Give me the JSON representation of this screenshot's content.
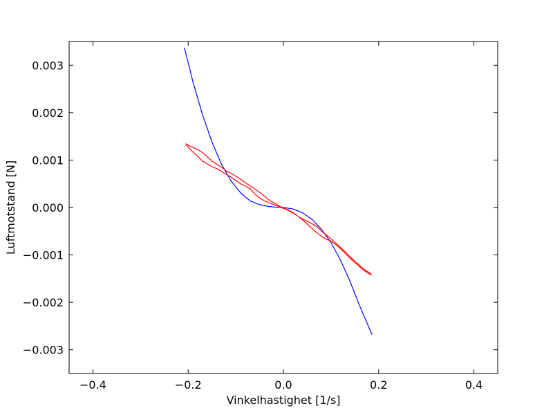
{
  "chart_data": {
    "type": "line",
    "title": "",
    "xlabel": "Vinkelhastighet [1/s]",
    "ylabel": "Luftmotstand [N]",
    "xlim": [
      -0.45,
      0.45
    ],
    "ylim": [
      -0.0035,
      0.0035
    ],
    "xticks": [
      -0.4,
      -0.2,
      0.0,
      0.2,
      0.4
    ],
    "yticks": [
      0.003,
      0.002,
      0.001,
      0.0,
      -0.001,
      -0.002,
      -0.003
    ],
    "xtick_labels": [
      "−0.4",
      "−0.2",
      "0.0",
      "0.2",
      "0.4"
    ],
    "ytick_labels": [
      "0.003",
      "0.002",
      "0.001",
      "0.000",
      "−0.001",
      "−0.002",
      "−0.003"
    ],
    "grid": false,
    "legend": false,
    "series": [
      {
        "color": "#0000ff",
        "x": [
          -0.208,
          -0.19,
          -0.17,
          -0.15,
          -0.13,
          -0.11,
          -0.09,
          -0.07,
          -0.05,
          -0.03,
          -0.01,
          0.0,
          0.02,
          0.04,
          0.06,
          0.08,
          0.1,
          0.12,
          0.14,
          0.16,
          0.186
        ],
        "y": [
          0.00337,
          0.00265,
          0.00196,
          0.00138,
          0.00091,
          0.00056,
          0.00031,
          0.00014,
          6e-05,
          2e-05,
          3e-06,
          0.0,
          -3e-05,
          -0.00011,
          -0.00025,
          -0.00046,
          -0.00074,
          -0.00111,
          -0.00156,
          -0.00207,
          -0.00268
        ]
      },
      {
        "color": "#ff0000",
        "x": [
          -0.205,
          -0.2,
          -0.19,
          -0.18,
          -0.17,
          -0.16,
          -0.15,
          -0.14,
          -0.13,
          -0.12,
          -0.11,
          -0.1,
          -0.09,
          -0.08,
          -0.07,
          -0.06,
          -0.05,
          -0.04,
          -0.03,
          -0.02,
          -0.01,
          0.0,
          0.01,
          0.02,
          0.03,
          0.04,
          0.05,
          0.06,
          0.07,
          0.08,
          0.09,
          0.1,
          0.11,
          0.12,
          0.13,
          0.14,
          0.15,
          0.16,
          0.17,
          0.18,
          0.185,
          0.18,
          0.17,
          0.16,
          0.15,
          0.14,
          0.13,
          0.12,
          0.11,
          0.1,
          0.09,
          0.08,
          0.07,
          0.06,
          0.05,
          0.04,
          0.03,
          0.02,
          0.01,
          0.0,
          -0.01,
          -0.02,
          -0.03,
          -0.04,
          -0.05,
          -0.06,
          -0.07,
          -0.08,
          -0.09,
          -0.1,
          -0.11,
          -0.12,
          -0.13,
          -0.14,
          -0.15,
          -0.16,
          -0.17,
          -0.18,
          -0.19,
          -0.2,
          -0.205
        ],
        "y": [
          0.00133,
          0.00127,
          0.00117,
          0.00108,
          0.00098,
          0.00092,
          0.00086,
          0.00082,
          0.00076,
          0.0007,
          0.00064,
          0.00057,
          0.0005,
          0.00045,
          0.0004,
          0.00028,
          0.0002,
          0.00014,
          0.0001,
          6e-05,
          2e-05,
          -2e-05,
          -6e-05,
          -0.00012,
          -0.00018,
          -0.00024,
          -0.00029,
          -0.00034,
          -0.0004,
          -0.0005,
          -0.00058,
          -0.00066,
          -0.00075,
          -0.00084,
          -0.00094,
          -0.00104,
          -0.00113,
          -0.00122,
          -0.00131,
          -0.00137,
          -0.00142,
          -0.0014,
          -0.00133,
          -0.00125,
          -0.00116,
          -0.00107,
          -0.00097,
          -0.00087,
          -0.00078,
          -0.00071,
          -0.00067,
          -0.00061,
          -0.00053,
          -0.00044,
          -0.00035,
          -0.00026,
          -0.00018,
          -0.00011,
          -5e-05,
          -1e-05,
          4e-05,
          0.0001,
          0.00016,
          0.00024,
          0.00032,
          0.00039,
          0.00046,
          0.00052,
          0.0006,
          0.00066,
          0.00072,
          0.00077,
          0.00085,
          0.00091,
          0.00098,
          0.00107,
          0.00116,
          0.00122,
          0.00127,
          0.00131,
          0.00135
        ]
      }
    ]
  }
}
